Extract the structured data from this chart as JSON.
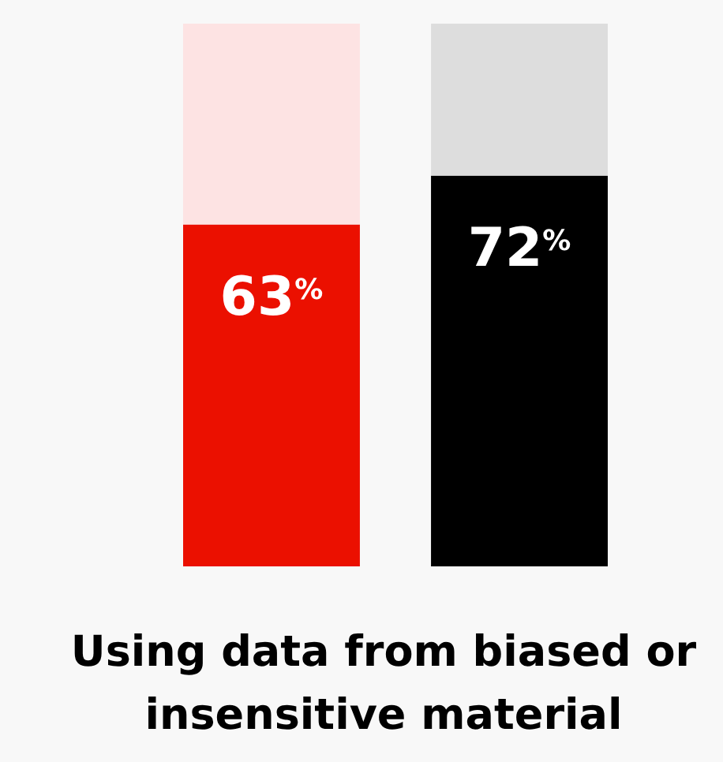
{
  "chart_data": {
    "type": "bar",
    "title": "Using data from biased or insensitive material",
    "categories": [
      null,
      null
    ],
    "stacked": true,
    "ylim": [
      0,
      100
    ],
    "tick_labels": false,
    "series": [
      {
        "colors": [
          "#eb1000",
          "#000000"
        ],
        "values": [
          63,
          72
        ],
        "value_labels": [
          "63$^{%}$",
          "72$^{%}$"
        ]
      },
      {
        "colors": [
          "#fde3e3",
          "#dddddd"
        ],
        "values": [
          37,
          28
        ]
      }
    ]
  }
}
